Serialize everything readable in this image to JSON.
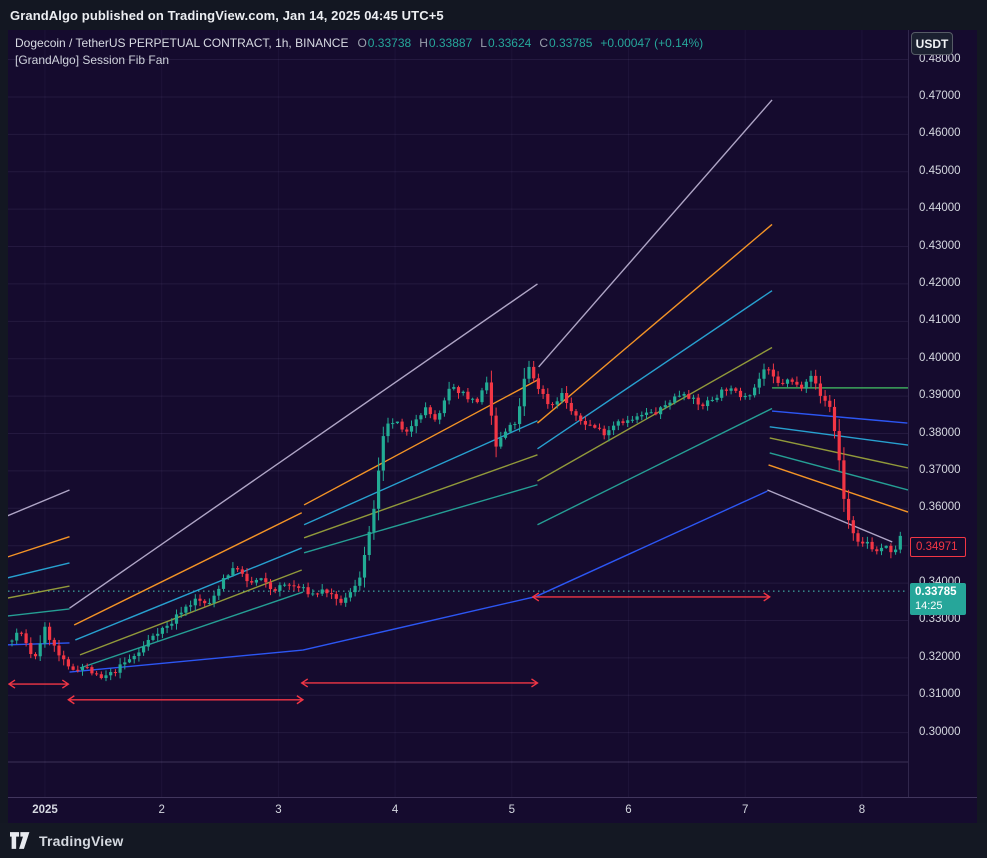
{
  "header": {
    "published_line": "GrandAlgo published on TradingView.com, Jan 14, 2025 04:45 UTC+5"
  },
  "symbol_bar": {
    "title": "Dogecoin / TetherUS PERPETUAL CONTRACT, 1h, BINANCE",
    "ohlc": {
      "o_label": "O",
      "o": "0.33738",
      "h_label": "H",
      "h": "0.33887",
      "l_label": "L",
      "l": "0.33624",
      "c_label": "C",
      "c": "0.33785",
      "change": "+0.00047 (+0.14%)"
    },
    "indicator": "[GrandAlgo] Session Fib Fan",
    "currency_button": "USDT"
  },
  "footer": {
    "logo_text": "TradingView"
  },
  "colors": {
    "background": "#150b2e",
    "frame": "#131722",
    "grid": "rgba(175,155,215,0.10)",
    "grid_v": "rgba(175,155,215,0.06)",
    "separator": "rgba(200,185,235,0.22)",
    "up": "#22ab94",
    "down": "#f23645",
    "dotted_line": "#46c8b9",
    "arrow": "#f23645",
    "fan": {
      "gray": "#b8aecf",
      "orange": "#ff9b26",
      "cyan": "#29a8d8",
      "olive": "#98a13b",
      "teal": "#26a69a",
      "blue": "#2e5bff",
      "green": "#3fae5e"
    }
  },
  "chart_data": {
    "type": "candlestick",
    "title": "Dogecoin / TetherUS Perpetual Contract 1h with [GrandAlgo] Session Fib Fan",
    "x_axis": {
      "unit": "day of Jan 2025",
      "min_day": 0.683,
      "max_day": 8.395,
      "ticks": [
        {
          "label": "2025",
          "day": 1,
          "bold": true
        },
        {
          "label": "2",
          "day": 2
        },
        {
          "label": "3",
          "day": 3
        },
        {
          "label": "4",
          "day": 4
        },
        {
          "label": "5",
          "day": 5
        },
        {
          "label": "6",
          "day": 6
        },
        {
          "label": "7",
          "day": 7
        },
        {
          "label": "8",
          "day": 8
        }
      ]
    },
    "y_axis": {
      "unit": "USDT",
      "min": 0.2828,
      "max": 0.4879,
      "grid": true,
      "ticks": [
        {
          "label": "0.48000",
          "price": 0.48
        },
        {
          "label": "0.47000",
          "price": 0.47
        },
        {
          "label": "0.46000",
          "price": 0.46
        },
        {
          "label": "0.45000",
          "price": 0.45
        },
        {
          "label": "0.44000",
          "price": 0.44
        },
        {
          "label": "0.43000",
          "price": 0.43
        },
        {
          "label": "0.42000",
          "price": 0.42
        },
        {
          "label": "0.41000",
          "price": 0.41
        },
        {
          "label": "0.40000",
          "price": 0.4
        },
        {
          "label": "0.39000",
          "price": 0.39
        },
        {
          "label": "0.38000",
          "price": 0.38
        },
        {
          "label": "0.37000",
          "price": 0.37
        },
        {
          "label": "0.36000",
          "price": 0.36
        },
        {
          "label": "0.35000",
          "price": 0.35
        },
        {
          "label": "0.34000",
          "price": 0.34
        },
        {
          "label": "0.33000",
          "price": 0.33
        },
        {
          "label": "0.32000",
          "price": 0.32
        },
        {
          "label": "0.31000",
          "price": 0.31
        },
        {
          "label": "0.30000",
          "price": 0.3
        }
      ]
    },
    "price_path": [
      [
        0.68,
        0.3245
      ],
      [
        0.79,
        0.3272
      ],
      [
        0.9,
        0.319
      ],
      [
        1.0,
        0.3278
      ],
      [
        1.11,
        0.321
      ],
      [
        1.21,
        0.3168
      ],
      [
        1.34,
        0.3178
      ],
      [
        1.47,
        0.3142
      ],
      [
        1.57,
        0.3158
      ],
      [
        1.69,
        0.3188
      ],
      [
        1.81,
        0.3215
      ],
      [
        1.94,
        0.3268
      ],
      [
        2.07,
        0.3288
      ],
      [
        2.16,
        0.3325
      ],
      [
        2.29,
        0.3355
      ],
      [
        2.41,
        0.3342
      ],
      [
        2.54,
        0.342
      ],
      [
        2.65,
        0.3442
      ],
      [
        2.74,
        0.3396
      ],
      [
        2.84,
        0.3412
      ],
      [
        2.95,
        0.338
      ],
      [
        3.06,
        0.3396
      ],
      [
        3.19,
        0.3386
      ],
      [
        3.29,
        0.337
      ],
      [
        3.4,
        0.3382
      ],
      [
        3.51,
        0.3346
      ],
      [
        3.6,
        0.3362
      ],
      [
        3.7,
        0.3422
      ],
      [
        3.8,
        0.356
      ],
      [
        3.91,
        0.3812
      ],
      [
        4.0,
        0.3836
      ],
      [
        4.09,
        0.3792
      ],
      [
        4.17,
        0.3842
      ],
      [
        4.26,
        0.3866
      ],
      [
        4.36,
        0.3832
      ],
      [
        4.47,
        0.3922
      ],
      [
        4.57,
        0.3912
      ],
      [
        4.69,
        0.3882
      ],
      [
        4.79,
        0.3932
      ],
      [
        4.86,
        0.3762
      ],
      [
        4.94,
        0.3802
      ],
      [
        5.05,
        0.3836
      ],
      [
        5.13,
        0.3986
      ],
      [
        5.23,
        0.3922
      ],
      [
        5.33,
        0.3872
      ],
      [
        5.43,
        0.3906
      ],
      [
        5.54,
        0.3842
      ],
      [
        5.67,
        0.3822
      ],
      [
        5.8,
        0.3802
      ],
      [
        5.91,
        0.3836
      ],
      [
        6.01,
        0.3832
      ],
      [
        6.14,
        0.3852
      ],
      [
        6.25,
        0.3856
      ],
      [
        6.37,
        0.3892
      ],
      [
        6.48,
        0.3912
      ],
      [
        6.61,
        0.3872
      ],
      [
        6.72,
        0.3892
      ],
      [
        6.83,
        0.3922
      ],
      [
        6.96,
        0.3902
      ],
      [
        7.06,
        0.3912
      ],
      [
        7.17,
        0.3976
      ],
      [
        7.28,
        0.3932
      ],
      [
        7.38,
        0.3942
      ],
      [
        7.47,
        0.3922
      ],
      [
        7.56,
        0.3962
      ],
      [
        7.64,
        0.3902
      ],
      [
        7.73,
        0.3872
      ],
      [
        7.8,
        0.3742
      ],
      [
        7.86,
        0.3592
      ],
      [
        7.92,
        0.3532
      ],
      [
        7.98,
        0.3496
      ],
      [
        8.05,
        0.3512
      ],
      [
        8.12,
        0.3482
      ],
      [
        8.19,
        0.3502
      ],
      [
        8.26,
        0.3472
      ],
      [
        8.33,
        0.3522
      ],
      [
        8.37,
        0.3497
      ]
    ],
    "fan_lines": [
      {
        "color": "gray",
        "d1": 0.68,
        "p1": 0.358,
        "d2": 1.21,
        "p2": 0.3649
      },
      {
        "color": "orange",
        "d1": 0.68,
        "p1": 0.347,
        "d2": 1.21,
        "p2": 0.3524
      },
      {
        "color": "cyan",
        "d1": 0.68,
        "p1": 0.3414,
        "d2": 1.21,
        "p2": 0.3454
      },
      {
        "color": "olive",
        "d1": 0.68,
        "p1": 0.336,
        "d2": 1.21,
        "p2": 0.3392
      },
      {
        "color": "teal",
        "d1": 0.68,
        "p1": 0.3312,
        "d2": 1.21,
        "p2": 0.3331
      },
      {
        "color": "blue",
        "d1": 0.68,
        "p1": 0.3235,
        "d2": 1.21,
        "p2": 0.324
      },
      {
        "color": "gray",
        "d1": 1.21,
        "p1": 0.3333,
        "d2": 5.22,
        "p2": 0.42
      },
      {
        "color": "orange",
        "d1": 1.25,
        "p1": 0.3288,
        "d2": 3.2,
        "p2": 0.3588
      },
      {
        "color": "cyan",
        "d1": 1.26,
        "p1": 0.3248,
        "d2": 3.2,
        "p2": 0.3494
      },
      {
        "color": "olive",
        "d1": 1.3,
        "p1": 0.3208,
        "d2": 3.2,
        "p2": 0.3435
      },
      {
        "color": "teal",
        "d1": 1.3,
        "p1": 0.3173,
        "d2": 3.21,
        "p2": 0.3376
      },
      {
        "color": "blue",
        "d1": 1.21,
        "p1": 0.3162,
        "d2": 3.21,
        "p2": 0.3221
      },
      {
        "color": "orange",
        "d1": 3.22,
        "p1": 0.3609,
        "d2": 5.22,
        "p2": 0.3943
      },
      {
        "color": "cyan",
        "d1": 3.22,
        "p1": 0.3556,
        "d2": 5.22,
        "p2": 0.3834
      },
      {
        "color": "olive",
        "d1": 3.22,
        "p1": 0.3521,
        "d2": 5.22,
        "p2": 0.3743
      },
      {
        "color": "teal",
        "d1": 3.22,
        "p1": 0.3481,
        "d2": 5.22,
        "p2": 0.3663
      },
      {
        "color": "blue",
        "d1": 3.21,
        "p1": 0.3221,
        "d2": 5.22,
        "p2": 0.3365
      },
      {
        "color": "gray",
        "d1": 5.23,
        "p1": 0.3978,
        "d2": 7.23,
        "p2": 0.4692
      },
      {
        "color": "orange",
        "d1": 5.22,
        "p1": 0.3828,
        "d2": 7.23,
        "p2": 0.4359
      },
      {
        "color": "cyan",
        "d1": 5.22,
        "p1": 0.3759,
        "d2": 7.23,
        "p2": 0.4182
      },
      {
        "color": "olive",
        "d1": 5.22,
        "p1": 0.3673,
        "d2": 7.23,
        "p2": 0.403
      },
      {
        "color": "teal",
        "d1": 5.22,
        "p1": 0.3556,
        "d2": 7.23,
        "p2": 0.3867
      },
      {
        "color": "blue",
        "d1": 5.22,
        "p1": 0.3366,
        "d2": 7.19,
        "p2": 0.3646
      },
      {
        "color": "green",
        "d1": 7.23,
        "p1": 0.3922,
        "d2": 8.4,
        "p2": 0.3922
      },
      {
        "color": "blue",
        "d1": 7.23,
        "p1": 0.386,
        "d2": 8.39,
        "p2": 0.3828
      },
      {
        "color": "cyan",
        "d1": 7.21,
        "p1": 0.3818,
        "d2": 8.4,
        "p2": 0.3769
      },
      {
        "color": "olive",
        "d1": 7.21,
        "p1": 0.3788,
        "d2": 8.4,
        "p2": 0.3708
      },
      {
        "color": "teal",
        "d1": 7.21,
        "p1": 0.3748,
        "d2": 8.4,
        "p2": 0.3649
      },
      {
        "color": "orange",
        "d1": 7.2,
        "p1": 0.3716,
        "d2": 8.4,
        "p2": 0.359
      },
      {
        "color": "gray",
        "d1": 7.19,
        "p1": 0.3649,
        "d2": 8.26,
        "p2": 0.351
      }
    ],
    "session_arrows": [
      {
        "d1": 0.64,
        "d2": 1.2,
        "price": 0.313
      },
      {
        "d1": 1.2,
        "d2": 3.21,
        "price": 0.3088
      },
      {
        "d1": 3.2,
        "d2": 5.22,
        "price": 0.3133
      },
      {
        "d1": 5.18,
        "d2": 7.21,
        "price": 0.3363
      }
    ],
    "dotted_line_price": 0.33785,
    "last_price_label": {
      "value": "0.34971",
      "price": 0.34971
    },
    "current_price": {
      "value": "0.33785",
      "price": 0.33785,
      "countdown": "14:25"
    }
  }
}
